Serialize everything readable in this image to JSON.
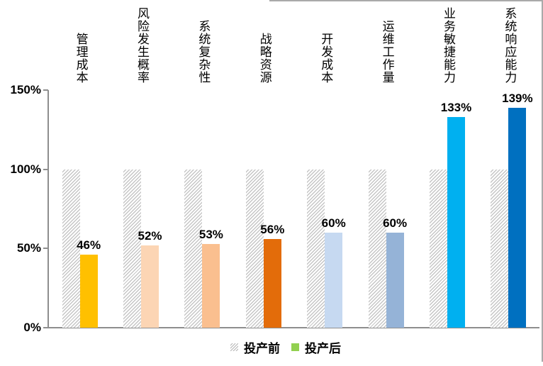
{
  "frame": {
    "border_color": "#aaaaaa"
  },
  "axis": {
    "tick_labels": [
      "0%",
      "50%",
      "100%",
      "150%"
    ],
    "tick_values": [
      0,
      50,
      100,
      150
    ],
    "line_color": "#8e8e8e"
  },
  "legend": {
    "items": [
      {
        "label": "投产前",
        "swatch": "hatched-gray"
      },
      {
        "label": "投产后",
        "swatch": "solid",
        "color": "#92D050"
      }
    ]
  },
  "chart_data": {
    "type": "bar",
    "categories": [
      "管理成本",
      "风险发生概率",
      "系统复杂性",
      "战略资源",
      "开发成本",
      "运维工作量",
      "业务敏捷能力",
      "系统响应能力"
    ],
    "series": [
      {
        "name": "投产前",
        "style": "hatched",
        "stripe_color": "#c6c6c6",
        "values": [
          100,
          100,
          100,
          100,
          100,
          100,
          100,
          100
        ]
      },
      {
        "name": "投产后",
        "style": "solid",
        "values": [
          46,
          52,
          53,
          56,
          60,
          60,
          133,
          139
        ],
        "bar_colors": [
          "#FFC000",
          "#FCD5B4",
          "#FABF8F",
          "#E36C0A",
          "#C6D9F1",
          "#95B3D7",
          "#00B0F0",
          "#0070C0"
        ]
      }
    ],
    "value_labels": [
      "46%",
      "52%",
      "53%",
      "56%",
      "60%",
      "60%",
      "133%",
      "139%"
    ],
    "title": "",
    "xlabel": "",
    "ylabel": "",
    "ylim": [
      0,
      150
    ],
    "grid": false,
    "legend_position": "bottom"
  }
}
